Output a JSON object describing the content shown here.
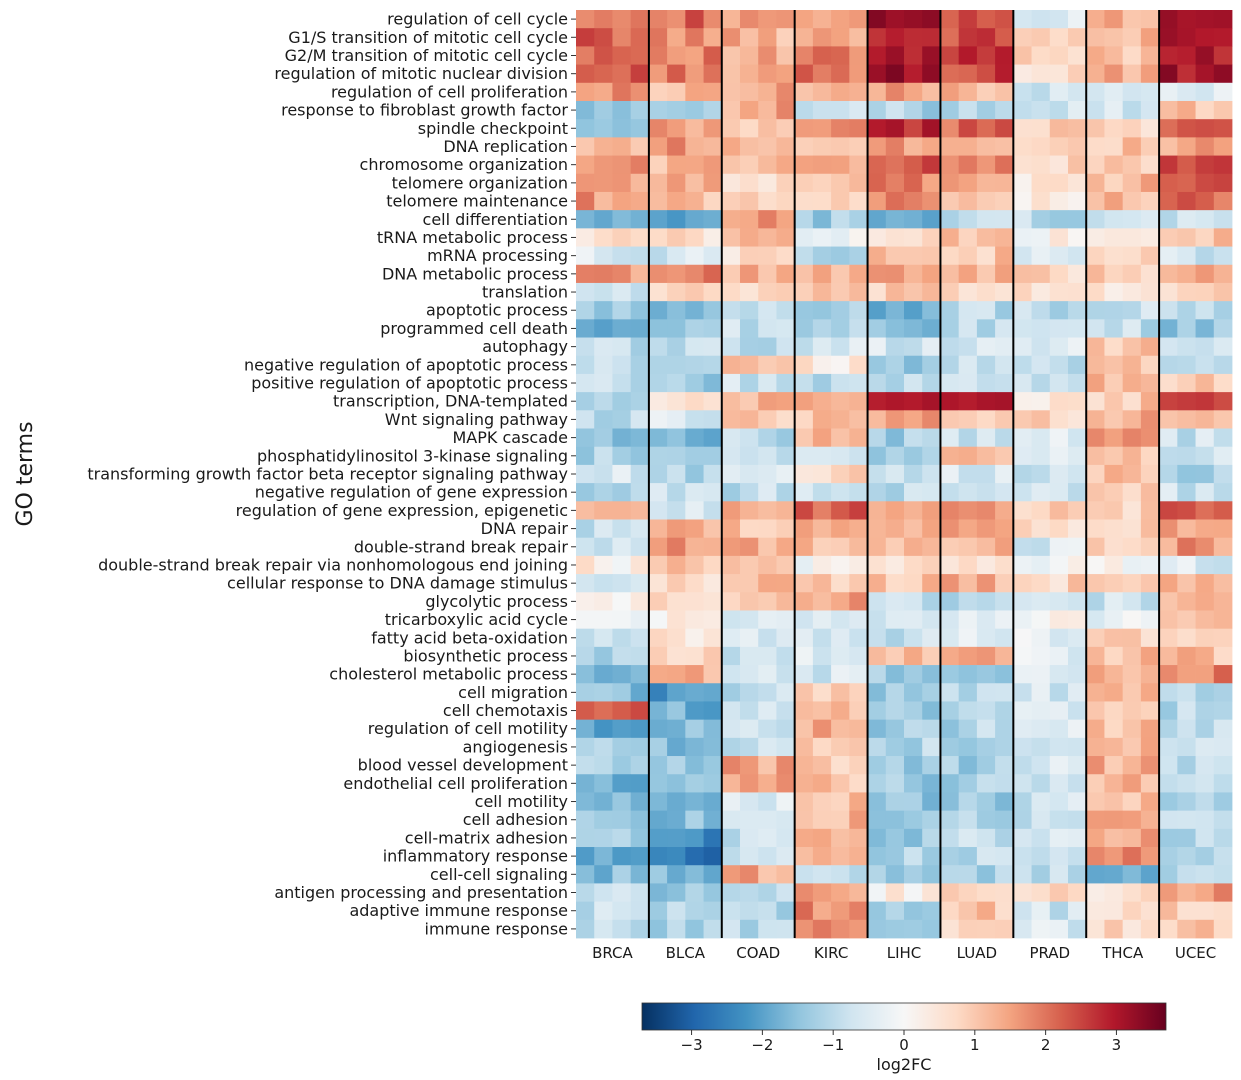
{
  "chart_data": {
    "type": "heatmap",
    "ylabel": "GO terms",
    "colorbar_label": "log2FC",
    "colorbar_ticks": [
      "−3",
      "−2",
      "−1",
      "0",
      "1",
      "2",
      "3"
    ],
    "colorbar_tick_values": [
      -3,
      -2,
      -1,
      0,
      1,
      2,
      3
    ],
    "vrange": [
      -3.7,
      3.7
    ],
    "colormap": "RdBu_r",
    "colormap_stops": [
      "#053061",
      "#2166ac",
      "#4393c3",
      "#92c5de",
      "#d1e5f0",
      "#f7f7f7",
      "#fddbc7",
      "#f4a582",
      "#d6604d",
      "#b2182b",
      "#67001f"
    ],
    "columns_per_group": 4,
    "groups": [
      "BRCA",
      "BLCA",
      "COAD",
      "KIRC",
      "LIHC",
      "LUAD",
      "PRAD",
      "THCA",
      "UCEC"
    ],
    "rows": [
      "regulation of cell cycle",
      "G1/S transition of mitotic cell cycle",
      "G2/M transition of mitotic cell cycle",
      "regulation of mitotic nuclear division",
      "regulation of cell proliferation",
      "response to fibroblast growth factor",
      "spindle checkpoint",
      "DNA replication",
      "chromosome organization",
      "telomere organization",
      "telomere maintenance",
      "cell differentiation",
      "tRNA metabolic process",
      "mRNA processing",
      "DNA metabolic process",
      "translation",
      "apoptotic process",
      "programmed cell death",
      "autophagy",
      "negative regulation of apoptotic process",
      "positive regulation of apoptotic process",
      "transcription, DNA-templated",
      "Wnt signaling pathway",
      "MAPK cascade",
      "phosphatidylinositol 3-kinase signaling",
      "transforming growth factor beta receptor signaling pathway",
      "negative regulation of gene expression",
      "regulation of gene expression, epigenetic",
      "DNA repair",
      "double-strand break repair",
      "double-strand break repair via nonhomologous end joining",
      "cellular response to DNA damage stimulus",
      "glycolytic process",
      "tricarboxylic acid cycle",
      "fatty acid beta-oxidation",
      "biosynthetic process",
      "cholesterol metabolic process",
      "cell migration",
      "cell chemotaxis",
      "regulation of cell motility",
      "angiogenesis",
      "blood vessel development",
      "endothelial cell proliferation",
      "cell motility",
      "cell adhesion",
      "cell-matrix adhesion",
      "inflammatory response",
      "cell-cell signaling",
      "antigen processing and presentation",
      "adaptive immune response",
      "immune response"
    ],
    "group_row_means": {
      "BRCA": [
        2.2,
        2.2,
        2.3,
        2.2,
        1.6,
        -1.6,
        -1.6,
        1.3,
        1.6,
        1.6,
        1.6,
        -2.0,
        0.6,
        -0.6,
        1.6,
        -0.7,
        -1.5,
        -1.8,
        -1.0,
        -0.8,
        -0.9,
        -1.3,
        -0.9,
        -1.4,
        -1.2,
        -0.6,
        -1.4,
        1.6,
        -0.9,
        -0.7,
        0.3,
        -0.9,
        0.4,
        0.0,
        -0.7,
        -1.1,
        -2.0,
        -1.6,
        2.3,
        -2.0,
        -1.2,
        -1.3,
        -1.7,
        -1.4,
        -1.3,
        -1.4,
        -1.9,
        -1.6,
        -0.7,
        -0.9,
        -1.0
      ],
      "BLCA": [
        2.1,
        1.7,
        1.9,
        2.0,
        1.2,
        -1.0,
        1.4,
        1.6,
        1.3,
        1.2,
        1.1,
        -2.2,
        0.6,
        -0.6,
        1.8,
        0.7,
        -1.6,
        -1.5,
        -0.8,
        -1.5,
        -1.4,
        0.4,
        -0.6,
        -1.6,
        -1.4,
        -1.1,
        -0.9,
        -0.6,
        1.2,
        1.5,
        1.2,
        0.6,
        0.5,
        0.4,
        0.5,
        0.8,
        1.2,
        -2.3,
        -1.8,
        -1.6,
        -1.5,
        -1.4,
        -1.5,
        -1.5,
        -1.6,
        -2.4,
        -2.6,
        -1.5,
        -1.5,
        -1.1,
        -1.2
      ],
      "COAD": [
        1.4,
        1.3,
        1.3,
        1.3,
        1.5,
        1.4,
        0.9,
        1.1,
        1.0,
        0.8,
        0.8,
        1.6,
        1.1,
        0.6,
        1.2,
        0.6,
        -0.9,
        -0.9,
        -1.0,
        1.0,
        -0.8,
        1.4,
        1.1,
        -1.0,
        -0.8,
        -0.7,
        -0.9,
        1.2,
        1.1,
        1.3,
        1.0,
        1.1,
        0.8,
        -0.6,
        -0.7,
        -0.7,
        -0.8,
        -0.9,
        -0.9,
        -0.8,
        -0.7,
        1.4,
        1.4,
        -0.6,
        -0.9,
        -0.9,
        -0.9,
        1.4,
        -1.0,
        -1.1,
        -1.0
      ],
      "KIRC": [
        1.5,
        1.5,
        1.8,
        1.9,
        1.3,
        -0.8,
        1.8,
        1.3,
        1.6,
        1.2,
        1.0,
        -1.3,
        0.0,
        -1.0,
        1.4,
        0.8,
        -1.2,
        -1.0,
        -0.7,
        0.5,
        -0.9,
        1.2,
        1.1,
        1.4,
        -0.7,
        0.8,
        -0.8,
        2.2,
        1.3,
        1.3,
        0.0,
        1.1,
        1.6,
        -0.6,
        -0.8,
        -0.6,
        -0.6,
        1.1,
        1.3,
        1.3,
        1.2,
        1.0,
        1.0,
        1.0,
        1.3,
        1.4,
        1.1,
        -1.1,
        1.5,
        1.8,
        2.0
      ],
      "LIHC": [
        3.0,
        2.8,
        2.9,
        3.1,
        1.4,
        -1.2,
        2.8,
        1.6,
        2.3,
        1.8,
        1.7,
        -1.7,
        0.5,
        1.0,
        1.3,
        0.8,
        -1.7,
        -1.6,
        -0.6,
        -1.4,
        -1.1,
        2.7,
        1.4,
        -1.3,
        -1.2,
        -0.8,
        -0.9,
        1.5,
        1.3,
        1.0,
        0.7,
        1.0,
        -1.0,
        -0.8,
        -0.9,
        1.3,
        -1.2,
        -1.5,
        -1.4,
        -1.3,
        -1.1,
        -1.2,
        -1.3,
        -1.5,
        -1.3,
        -1.3,
        -1.2,
        -1.3,
        0.3,
        -1.3,
        -1.3
      ],
      "LUAD": [
        2.4,
        2.4,
        2.7,
        2.5,
        1.3,
        -0.9,
        2.1,
        1.4,
        1.9,
        1.3,
        1.3,
        -1.0,
        1.2,
        1.0,
        1.4,
        0.8,
        -1.0,
        -0.9,
        -0.6,
        -0.8,
        -0.7,
        3.0,
        1.2,
        -0.9,
        1.2,
        -0.6,
        -0.9,
        1.5,
        1.4,
        1.2,
        0.4,
        1.3,
        -0.9,
        -0.3,
        -0.4,
        1.3,
        -1.1,
        -1.0,
        -1.1,
        -1.1,
        -1.3,
        -1.3,
        -1.2,
        -1.4,
        -1.2,
        -0.9,
        -1.0,
        -1.1,
        1.1,
        1.0,
        0.9
      ],
      "PRAD": [
        -0.6,
        0.9,
        0.7,
        0.7,
        -0.8,
        -0.6,
        1.0,
        1.0,
        0.8,
        0.5,
        0.5,
        -1.0,
        0.1,
        -0.6,
        0.8,
        0.5,
        -1.0,
        -1.1,
        -0.6,
        -0.8,
        -0.7,
        0.4,
        0.7,
        -0.6,
        -0.6,
        -0.7,
        -0.7,
        0.9,
        0.7,
        -0.6,
        0.1,
        0.8,
        -0.6,
        0.0,
        -0.3,
        -0.5,
        -0.6,
        -0.7,
        -0.6,
        -0.6,
        -0.8,
        -0.7,
        -0.6,
        -0.7,
        -0.7,
        -0.6,
        -0.8,
        -1.0,
        0.6,
        -0.7,
        -0.6
      ],
      "THCA": [
        1.2,
        1.1,
        1.1,
        1.3,
        -0.7,
        -0.6,
        0.9,
        1.0,
        1.0,
        1.2,
        1.1,
        -0.9,
        0.1,
        0.7,
        0.9,
        0.6,
        -0.9,
        -0.9,
        1.0,
        1.1,
        1.1,
        1.0,
        1.4,
        1.6,
        1.1,
        1.0,
        0.9,
        0.9,
        0.8,
        0.7,
        0.0,
        0.9,
        -0.8,
        -0.2,
        0.9,
        1.2,
        1.2,
        1.3,
        1.2,
        1.2,
        1.4,
        1.3,
        1.2,
        1.2,
        1.2,
        1.4,
        1.7,
        -1.6,
        0.7,
        0.8,
        0.8
      ],
      "UCEC": [
        3.0,
        3.0,
        3.1,
        3.0,
        -0.5,
        1.0,
        2.2,
        1.4,
        2.3,
        2.2,
        2.2,
        -0.7,
        1.1,
        -0.7,
        1.6,
        0.8,
        -1.0,
        -1.4,
        -0.9,
        -1.2,
        0.9,
        2.6,
        1.2,
        -0.8,
        -0.8,
        -1.3,
        -0.8,
        2.2,
        1.3,
        1.6,
        -0.5,
        1.3,
        1.0,
        0.9,
        1.1,
        1.1,
        1.9,
        -1.1,
        -1.0,
        -1.0,
        -0.8,
        -0.9,
        -1.1,
        -1.0,
        -1.0,
        -1.0,
        -1.2,
        -1.2,
        1.5,
        1.0,
        0.9
      ]
    }
  }
}
